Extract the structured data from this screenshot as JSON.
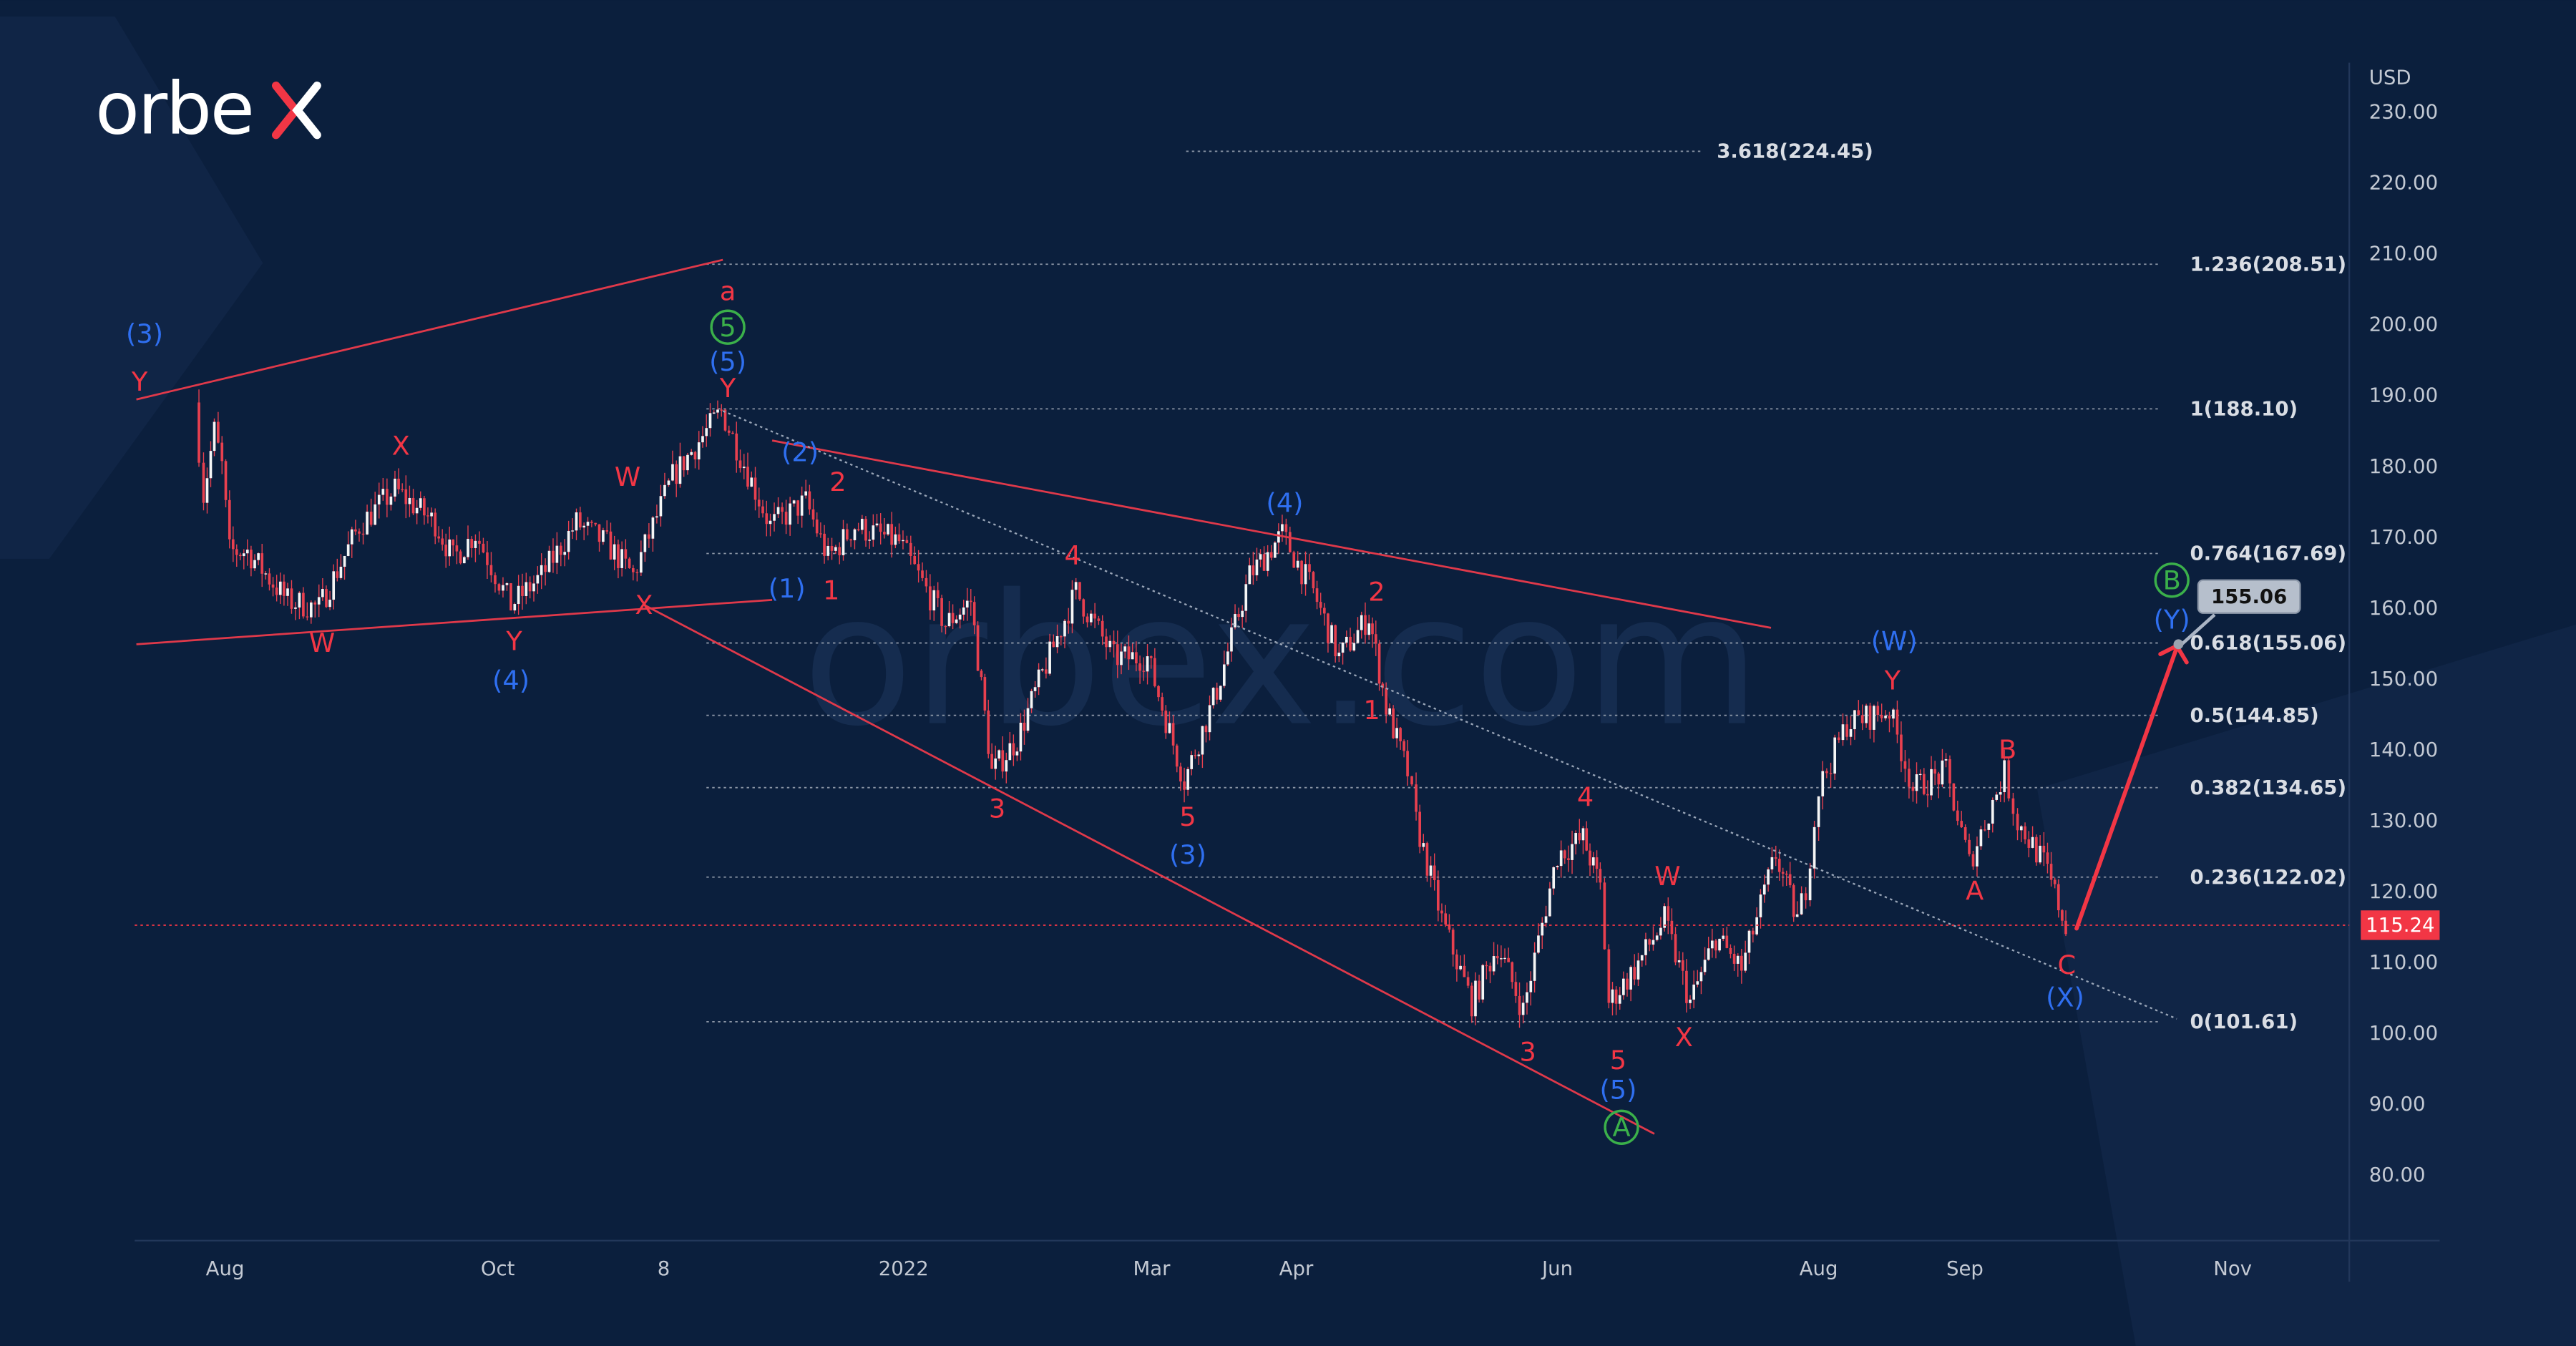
{
  "brand": {
    "logo_text": "orbex",
    "watermark": "orbex.com"
  },
  "colors": {
    "background": "#0b1f3d",
    "wave_red": "#f23645",
    "wave_blue": "#2f6ff0",
    "wave_green": "#3bb04a",
    "candle_up": "#f23645",
    "candle_down": "#f23645",
    "fib_line": "#8b95a5"
  },
  "chart_data": {
    "type": "candlestick",
    "currency": "USD",
    "ylim": [
      75,
      235
    ],
    "y_ticks": [
      "230.00",
      "220.00",
      "210.00",
      "200.00",
      "190.00",
      "180.00",
      "170.00",
      "160.00",
      "150.00",
      "140.00",
      "130.00",
      "120.00",
      "110.00",
      "100.00",
      "90.00",
      "80.00"
    ],
    "x_ticks": [
      "Aug",
      "Oct",
      "8",
      "2022",
      "Mar",
      "Apr",
      "Jun",
      "Aug",
      "Sep",
      "Nov"
    ],
    "grid": false,
    "price_path": [
      [
        "2021-07-12",
        189
      ],
      [
        "2021-07-18",
        176
      ],
      [
        "2021-07-25",
        185
      ],
      [
        "2021-07-30",
        180
      ],
      [
        "2021-08-02",
        168
      ],
      [
        "2021-08-06",
        168
      ],
      [
        "2021-08-15",
        161
      ],
      [
        "2021-08-22",
        160
      ],
      [
        "2021-08-31",
        171.6
      ],
      [
        "2021-09-08",
        176.7
      ],
      [
        "2021-09-17",
        172
      ],
      [
        "2021-09-21",
        167
      ],
      [
        "2021-09-26",
        170.5
      ],
      [
        "2021-10-04",
        160.4
      ],
      [
        "2021-10-11",
        164.5
      ],
      [
        "2021-10-19",
        172
      ],
      [
        "2021-10-26",
        169
      ],
      [
        "2021-11-01",
        164.6
      ],
      [
        "2021-11-10",
        178.5
      ],
      [
        "2021-11-21",
        187.8
      ],
      [
        "2021-12-02",
        171.6
      ],
      [
        "2021-12-10",
        175
      ],
      [
        "2021-12-15",
        167
      ],
      [
        "2021-12-21",
        171.6
      ],
      [
        "2021-12-31",
        169.3
      ],
      [
        "2022-01-11",
        157.7
      ],
      [
        "2022-01-17",
        161
      ],
      [
        "2022-01-22",
        136.8
      ],
      [
        "2022-01-28",
        141.4
      ],
      [
        "2022-02-03",
        150.7
      ],
      [
        "2022-02-11",
        162.3
      ],
      [
        "2022-02-20",
        153
      ],
      [
        "2022-02-28",
        153
      ],
      [
        "2022-03-08",
        135.6
      ],
      [
        "2022-03-15",
        148.4
      ],
      [
        "2022-03-22",
        164.6
      ],
      [
        "2022-03-29",
        170.4
      ],
      [
        "2022-04-05",
        162.3
      ],
      [
        "2022-04-11",
        153
      ],
      [
        "2022-04-18",
        158.8
      ],
      [
        "2022-04-22",
        146
      ],
      [
        "2022-04-27",
        136.8
      ],
      [
        "2022-04-29",
        129.8
      ],
      [
        "2022-05-05",
        116
      ],
      [
        "2022-05-12",
        104.3
      ],
      [
        "2022-05-18",
        112.4
      ],
      [
        "2022-05-24",
        103.2
      ],
      [
        "2022-06-01",
        125.2
      ],
      [
        "2022-06-07",
        127.5
      ],
      [
        "2022-06-11",
        120.6
      ],
      [
        "2022-06-13",
        104.3
      ],
      [
        "2022-06-19",
        109
      ],
      [
        "2022-06-26",
        116
      ],
      [
        "2022-07-02",
        104.3
      ],
      [
        "2022-07-08",
        113.6
      ],
      [
        "2022-07-14",
        109
      ],
      [
        "2022-07-22",
        125.2
      ],
      [
        "2022-07-27",
        116
      ],
      [
        "2022-07-29",
        120.6
      ],
      [
        "2022-08-01",
        134.5
      ],
      [
        "2022-08-07",
        143.7
      ],
      [
        "2022-08-16",
        145.6
      ],
      [
        "2022-08-21",
        134.5
      ],
      [
        "2022-08-28",
        136.8
      ],
      [
        "2022-09-02",
        124
      ],
      [
        "2022-09-10",
        136.8
      ],
      [
        "2022-09-13",
        129.8
      ],
      [
        "2022-09-19",
        124
      ],
      [
        "2022-09-24",
        115.24
      ]
    ],
    "current_price": "115.24",
    "fib_levels": [
      {
        "label": "3.618(224.45)",
        "price": 224.45
      },
      {
        "label": "1.236(208.51)",
        "price": 208.51
      },
      {
        "label": "1(188.10)",
        "price": 188.1
      },
      {
        "label": "0.764(167.69)",
        "price": 167.69
      },
      {
        "label": "0.618(155.06)",
        "price": 155.06
      },
      {
        "label": "0.5(144.85)",
        "price": 144.85
      },
      {
        "label": "0.382(134.65)",
        "price": 134.65
      },
      {
        "label": "0.236(122.02)",
        "price": 122.02
      },
      {
        "label": "0(101.61)",
        "price": 101.61
      }
    ],
    "target_callout": "155.06",
    "wave_labels": [
      {
        "text": "Y",
        "color": "red"
      },
      {
        "text": "(3)",
        "color": "blue"
      },
      {
        "text": "X",
        "color": "red"
      },
      {
        "text": "W",
        "color": "red"
      },
      {
        "text": "(4)",
        "color": "blue"
      },
      {
        "text": "Y",
        "color": "red"
      },
      {
        "text": "W",
        "color": "red"
      },
      {
        "text": "X",
        "color": "red"
      },
      {
        "text": "a",
        "color": "red"
      },
      {
        "text": "5",
        "color": "green",
        "circled": true
      },
      {
        "text": "(5)",
        "color": "blue"
      },
      {
        "text": "Y",
        "color": "red"
      },
      {
        "text": "(1)",
        "color": "blue"
      },
      {
        "text": "(2)",
        "color": "blue"
      },
      {
        "text": "2",
        "color": "red"
      },
      {
        "text": "1",
        "color": "red"
      },
      {
        "text": "4",
        "color": "red"
      },
      {
        "text": "3",
        "color": "red"
      },
      {
        "text": "5",
        "color": "red"
      },
      {
        "text": "(3)",
        "color": "blue"
      },
      {
        "text": "(4)",
        "color": "blue"
      },
      {
        "text": "2",
        "color": "red"
      },
      {
        "text": "1",
        "color": "red"
      },
      {
        "text": "4",
        "color": "red"
      },
      {
        "text": "3",
        "color": "red"
      },
      {
        "text": "5",
        "color": "red"
      },
      {
        "text": "(5)",
        "color": "blue"
      },
      {
        "text": "A",
        "color": "green",
        "circled": true
      },
      {
        "text": "W",
        "color": "red"
      },
      {
        "text": "X",
        "color": "red"
      },
      {
        "text": "(W)",
        "color": "blue"
      },
      {
        "text": "Y",
        "color": "red"
      },
      {
        "text": "B",
        "color": "red"
      },
      {
        "text": "A",
        "color": "red"
      },
      {
        "text": "C",
        "color": "red"
      },
      {
        "text": "(X)",
        "color": "blue"
      },
      {
        "text": "B",
        "color": "green",
        "circled": true
      },
      {
        "text": "(Y)",
        "color": "blue"
      }
    ]
  }
}
